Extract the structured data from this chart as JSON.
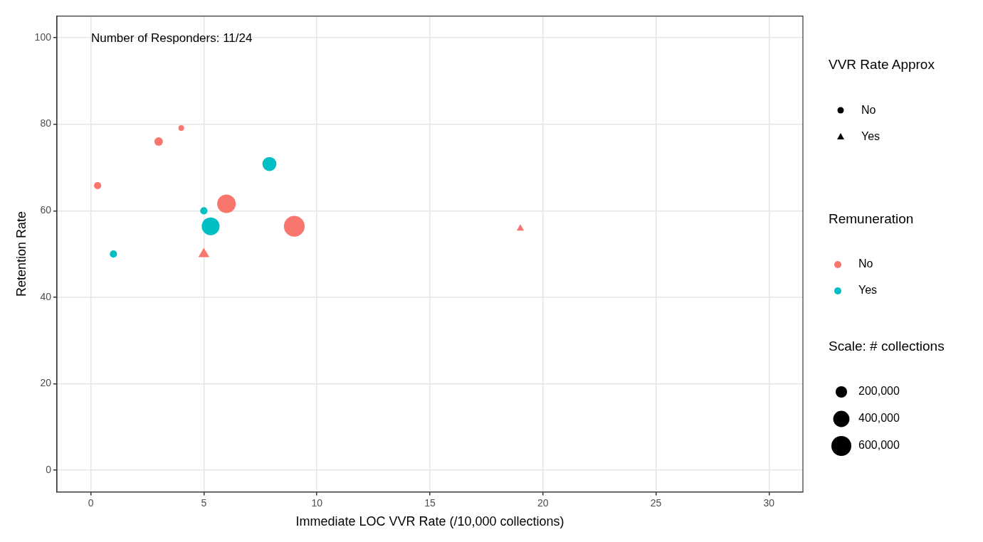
{
  "chart_data": {
    "type": "bubble",
    "xlabel": "Immediate LOC VVR Rate (/10,000 collections)",
    "ylabel": "Retention Rate",
    "xlim": [
      -1.5,
      31.5
    ],
    "xticks": [
      0,
      5,
      10,
      15,
      20,
      25,
      30
    ],
    "ylim": [
      -5,
      105
    ],
    "yticks": [
      0,
      20,
      40,
      60,
      80,
      100
    ],
    "grid": true,
    "annotations": [
      "Number of Responders: 11/24",
      "No",
      "Yes"
    ],
    "legend": "right",
    "legend_title": [
      "VVR Rate Approx",
      "Remuneration",
      "Scale: # collections"
    ],
    "size_legend": [
      {
        "value": 200000,
        "label": "200,000"
      },
      {
        "value": 400000,
        "label": "400,000"
      },
      {
        "value": 600000,
        "label": "600,000"
      }
    ],
    "series": [
      {
        "name": "No",
        "color": "#f8766d",
        "marker": "circle",
        "x": [
          0.3,
          3.0,
          4.0,
          6.0,
          9.0
        ],
        "values": [
          65.8,
          76.0,
          79.1,
          61.6,
          56.4
        ],
        "sizes": [
          80000,
          110000,
          50000,
          520000,
          650000
        ]
      },
      {
        "name": "Yes",
        "color": "#00bfc4",
        "marker": "circle",
        "x": [
          1.0,
          5.0,
          5.3,
          7.9
        ],
        "values": [
          50.0,
          60.0,
          56.4,
          70.8
        ],
        "sizes": [
          80000,
          80000,
          480000,
          300000
        ]
      },
      {
        "color": "#f8766d",
        "marker": "triangle",
        "x": [
          5.0,
          19.0
        ],
        "values": [
          50.0,
          55.9
        ],
        "sizes": [
          100000,
          45000
        ]
      }
    ]
  }
}
